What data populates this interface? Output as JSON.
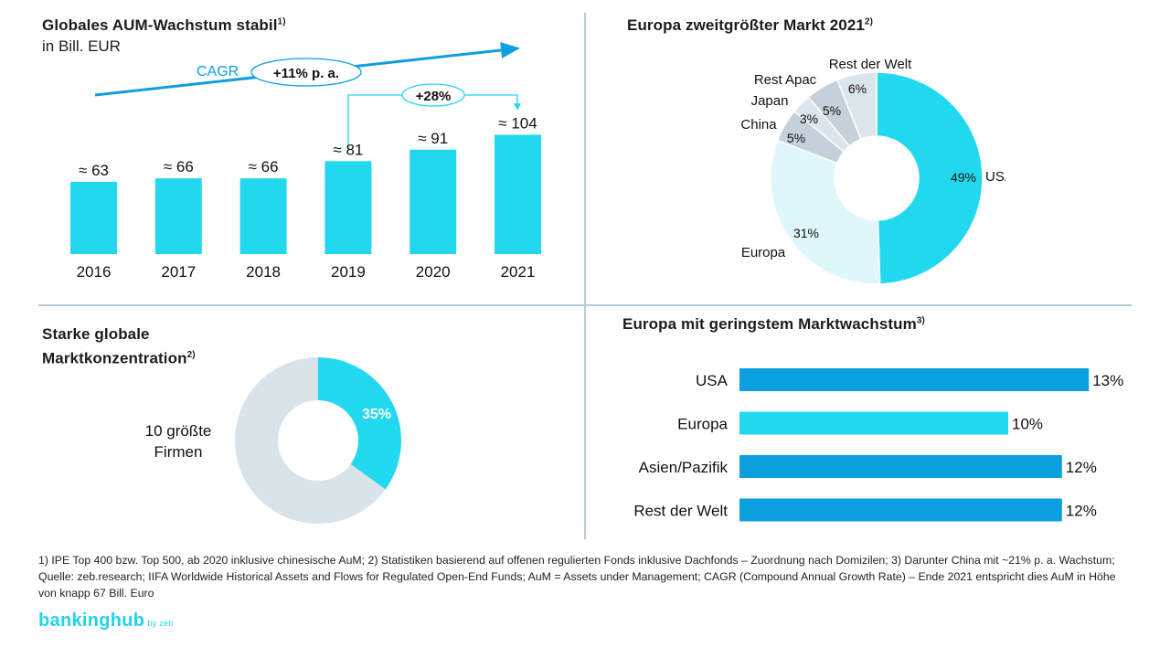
{
  "panel_tl": {
    "title": "Globales AUM-Wachstum stabil",
    "title_note": "1)",
    "subtitle": "in Bill. EUR",
    "cagr_label": "CAGR",
    "cagr_value": "+11% p. a.",
    "growth_value": "+28%"
  },
  "panel_tr": {
    "title": "Europa zweitgrößter Markt 2021",
    "title_note": "2)"
  },
  "panel_bl": {
    "title_line1": "Starke globale",
    "title_line2": "Marktkonzentration",
    "title_note": "2)"
  },
  "panel_br": {
    "title": "Europa mit geringstem Marktwachstum",
    "title_note": "3)"
  },
  "footnote": "1) IPE Top 400 bzw. Top 500, ab 2020 inklusive chinesische AuM; 2) Statistiken basierend auf offenen regulierten Fonds inklusive Dachfonds – Zuordnung nach Domizilen; 3) Darunter China mit ~21% p. a. Wachstum; Quelle: zeb.research; IIFA Worldwide Historical Assets and Flows for Regulated Open-End Funds; AuM = Assets under Management; CAGR (Compound Annual Growth Rate) – Ende 2021 entspricht dies AuM in Höhe von knapp 67 Bill. Euro",
  "logo": {
    "text": "bankinghub",
    "by": "by zeb"
  },
  "colors": {
    "cyan": "#22d8ee",
    "blue": "#0b9fe0",
    "light": "#dff6fb",
    "grey": "#d8e3ea",
    "grey2": "#c7d3dd"
  },
  "chart_data": [
    {
      "type": "bar",
      "title": "Globales AUM-Wachstum stabil",
      "ylabel": "in Bill. EUR",
      "categories": [
        "2016",
        "2017",
        "2018",
        "2019",
        "2020",
        "2021"
      ],
      "values": [
        63,
        66,
        66,
        81,
        91,
        104
      ],
      "labels": [
        "≈ 63",
        "≈ 66",
        "≈ 66",
        "≈ 81",
        "≈ 91",
        "≈ 104"
      ]
    },
    {
      "type": "pie",
      "title": "Europa zweitgrößter Markt 2021",
      "slices": [
        {
          "label": "USA",
          "value": 49,
          "text": "49%",
          "color": "#22d8ee"
        },
        {
          "label": "Europa",
          "value": 31,
          "text": "31%",
          "color": "#dff6fb"
        },
        {
          "label": "China",
          "value": 5,
          "text": "5%",
          "color": "#c4d0da"
        },
        {
          "label": "Japan",
          "value": 3,
          "text": "3%",
          "color": "#dbe5ec"
        },
        {
          "label": "Rest Apac",
          "value": 5,
          "text": "5%",
          "color": "#c4d0da"
        },
        {
          "label": "Rest der Welt",
          "value": 6,
          "text": "6%",
          "color": "#dbe5ec"
        }
      ]
    },
    {
      "type": "pie",
      "title": "Starke globale Marktkonzentration",
      "slices": [
        {
          "label": "10 größte Firmen",
          "value": 35,
          "text": "35%",
          "color": "#22d8ee"
        },
        {
          "label": "",
          "value": 65,
          "text": "",
          "color": "#d8e3ea"
        }
      ]
    },
    {
      "type": "bar",
      "orientation": "horizontal",
      "title": "Europa mit geringstem Marktwachstum",
      "categories": [
        "USA",
        "Europa",
        "Asien/Pazifik",
        "Rest der Welt"
      ],
      "values": [
        13,
        10,
        12,
        12
      ],
      "labels": [
        "13%",
        "10%",
        "12%",
        "12%"
      ],
      "colors": [
        "#0b9fe0",
        "#22d8ee",
        "#0b9fe0",
        "#0b9fe0"
      ]
    }
  ]
}
